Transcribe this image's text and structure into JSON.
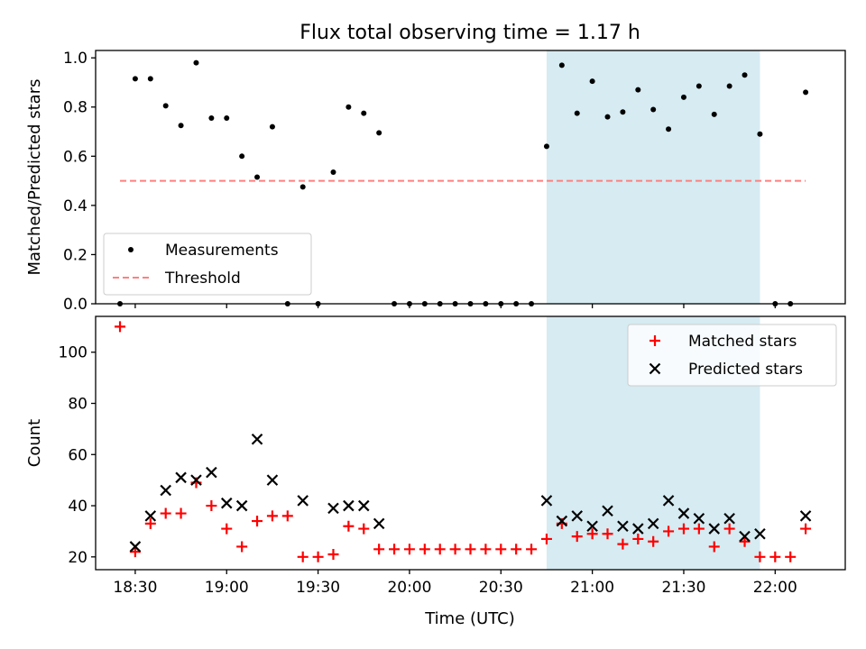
{
  "chart_data": [
    {
      "type": "scatter",
      "title": "Flux total observing time = 1.17 h",
      "xlabel": "",
      "ylabel": "Matched/Predicted stars",
      "ylim": [
        0,
        1.03
      ],
      "yticks": [
        "0.0",
        "0.2",
        "0.4",
        "0.6",
        "0.8",
        "1.0"
      ],
      "legend_position": "lower-left",
      "shaded_region": {
        "x": [
          "20:45",
          "21:55"
        ],
        "color": "#add8e6"
      },
      "series": [
        {
          "name": "Measurements",
          "marker": "dot",
          "color": "#000000",
          "points": [
            [
              "18:25",
              0.0
            ],
            [
              "18:30",
              0.915
            ],
            [
              "18:35",
              0.915
            ],
            [
              "18:40",
              0.805
            ],
            [
              "18:45",
              0.725
            ],
            [
              "18:50",
              0.98
            ],
            [
              "18:55",
              0.755
            ],
            [
              "19:00",
              0.755
            ],
            [
              "19:05",
              0.6
            ],
            [
              "19:10",
              0.515
            ],
            [
              "19:15",
              0.72
            ],
            [
              "19:20",
              0.0
            ],
            [
              "19:25",
              0.475
            ],
            [
              "19:30",
              0.0
            ],
            [
              "19:35",
              0.535
            ],
            [
              "19:40",
              0.8
            ],
            [
              "19:45",
              0.775
            ],
            [
              "19:50",
              0.695
            ],
            [
              "19:55",
              0.0
            ],
            [
              "20:00",
              0.0
            ],
            [
              "20:05",
              0.0
            ],
            [
              "20:10",
              0.0
            ],
            [
              "20:15",
              0.0
            ],
            [
              "20:20",
              0.0
            ],
            [
              "20:25",
              0.0
            ],
            [
              "20:30",
              0.0
            ],
            [
              "20:35",
              0.0
            ],
            [
              "20:40",
              0.0
            ],
            [
              "20:45",
              0.64
            ],
            [
              "20:50",
              0.97
            ],
            [
              "20:55",
              0.775
            ],
            [
              "21:00",
              0.905
            ],
            [
              "21:05",
              0.76
            ],
            [
              "21:10",
              0.78
            ],
            [
              "21:15",
              0.87
            ],
            [
              "21:20",
              0.79
            ],
            [
              "21:25",
              0.71
            ],
            [
              "21:30",
              0.84
            ],
            [
              "21:35",
              0.885
            ],
            [
              "21:40",
              0.77
            ],
            [
              "21:45",
              0.885
            ],
            [
              "21:50",
              0.93
            ],
            [
              "21:55",
              0.69
            ],
            [
              "22:00",
              0.0
            ],
            [
              "22:05",
              0.0
            ],
            [
              "22:10",
              0.86
            ]
          ]
        },
        {
          "name": "Threshold",
          "marker": "dashed-line",
          "color": "#ff7f7f",
          "points": [
            [
              "18:25",
              0.5
            ],
            [
              "22:10",
              0.5
            ]
          ]
        }
      ]
    },
    {
      "type": "scatter",
      "title": "",
      "xlabel": "Time (UTC)",
      "ylabel": "Count",
      "ylim": [
        15,
        114
      ],
      "yticks": [
        "20",
        "40",
        "60",
        "80",
        "100"
      ],
      "xticks": [
        "18:30",
        "19:00",
        "19:30",
        "20:00",
        "20:30",
        "21:00",
        "21:30",
        "22:00"
      ],
      "xlim": [
        "18:17",
        "22:23"
      ],
      "legend_position": "top-right",
      "shaded_region": {
        "x": [
          "20:45",
          "21:55"
        ],
        "color": "#add8e6"
      },
      "series": [
        {
          "name": "Matched stars",
          "marker": "plus",
          "color": "#ff0000",
          "points": [
            [
              "18:25",
              110
            ],
            [
              "18:30",
              22
            ],
            [
              "18:35",
              33
            ],
            [
              "18:40",
              37
            ],
            [
              "18:45",
              37
            ],
            [
              "18:50",
              49
            ],
            [
              "18:55",
              40
            ],
            [
              "19:00",
              31
            ],
            [
              "19:05",
              24
            ],
            [
              "19:10",
              34
            ],
            [
              "19:15",
              36
            ],
            [
              "19:20",
              36
            ],
            [
              "19:25",
              20
            ],
            [
              "19:30",
              20
            ],
            [
              "19:35",
              21
            ],
            [
              "19:40",
              32
            ],
            [
              "19:45",
              31
            ],
            [
              "19:50",
              23
            ],
            [
              "19:55",
              23
            ],
            [
              "20:00",
              23
            ],
            [
              "20:05",
              23
            ],
            [
              "20:10",
              23
            ],
            [
              "20:15",
              23
            ],
            [
              "20:20",
              23
            ],
            [
              "20:25",
              23
            ],
            [
              "20:30",
              23
            ],
            [
              "20:35",
              23
            ],
            [
              "20:40",
              23
            ],
            [
              "20:45",
              27
            ],
            [
              "20:50",
              33
            ],
            [
              "20:55",
              28
            ],
            [
              "21:00",
              29
            ],
            [
              "21:05",
              29
            ],
            [
              "21:10",
              25
            ],
            [
              "21:15",
              27
            ],
            [
              "21:20",
              26
            ],
            [
              "21:25",
              30
            ],
            [
              "21:30",
              31
            ],
            [
              "21:35",
              31
            ],
            [
              "21:40",
              24
            ],
            [
              "21:45",
              31
            ],
            [
              "21:50",
              26
            ],
            [
              "21:55",
              20
            ],
            [
              "22:00",
              20
            ],
            [
              "22:05",
              20
            ],
            [
              "22:10",
              31
            ]
          ]
        },
        {
          "name": "Predicted stars",
          "marker": "x",
          "color": "#000000",
          "points": [
            [
              "18:30",
              24
            ],
            [
              "18:35",
              36
            ],
            [
              "18:40",
              46
            ],
            [
              "18:45",
              51
            ],
            [
              "18:50",
              50
            ],
            [
              "18:55",
              53
            ],
            [
              "19:00",
              41
            ],
            [
              "19:05",
              40
            ],
            [
              "19:10",
              66
            ],
            [
              "19:15",
              50
            ],
            [
              "19:25",
              42
            ],
            [
              "19:35",
              39
            ],
            [
              "19:40",
              40
            ],
            [
              "19:45",
              40
            ],
            [
              "19:50",
              33
            ],
            [
              "20:45",
              42
            ],
            [
              "20:50",
              34
            ],
            [
              "20:55",
              36
            ],
            [
              "21:00",
              32
            ],
            [
              "21:05",
              38
            ],
            [
              "21:10",
              32
            ],
            [
              "21:15",
              31
            ],
            [
              "21:20",
              33
            ],
            [
              "21:25",
              42
            ],
            [
              "21:30",
              37
            ],
            [
              "21:35",
              35
            ],
            [
              "21:40",
              31
            ],
            [
              "21:45",
              35
            ],
            [
              "21:50",
              28
            ],
            [
              "21:55",
              29
            ],
            [
              "22:10",
              36
            ]
          ]
        }
      ]
    }
  ]
}
